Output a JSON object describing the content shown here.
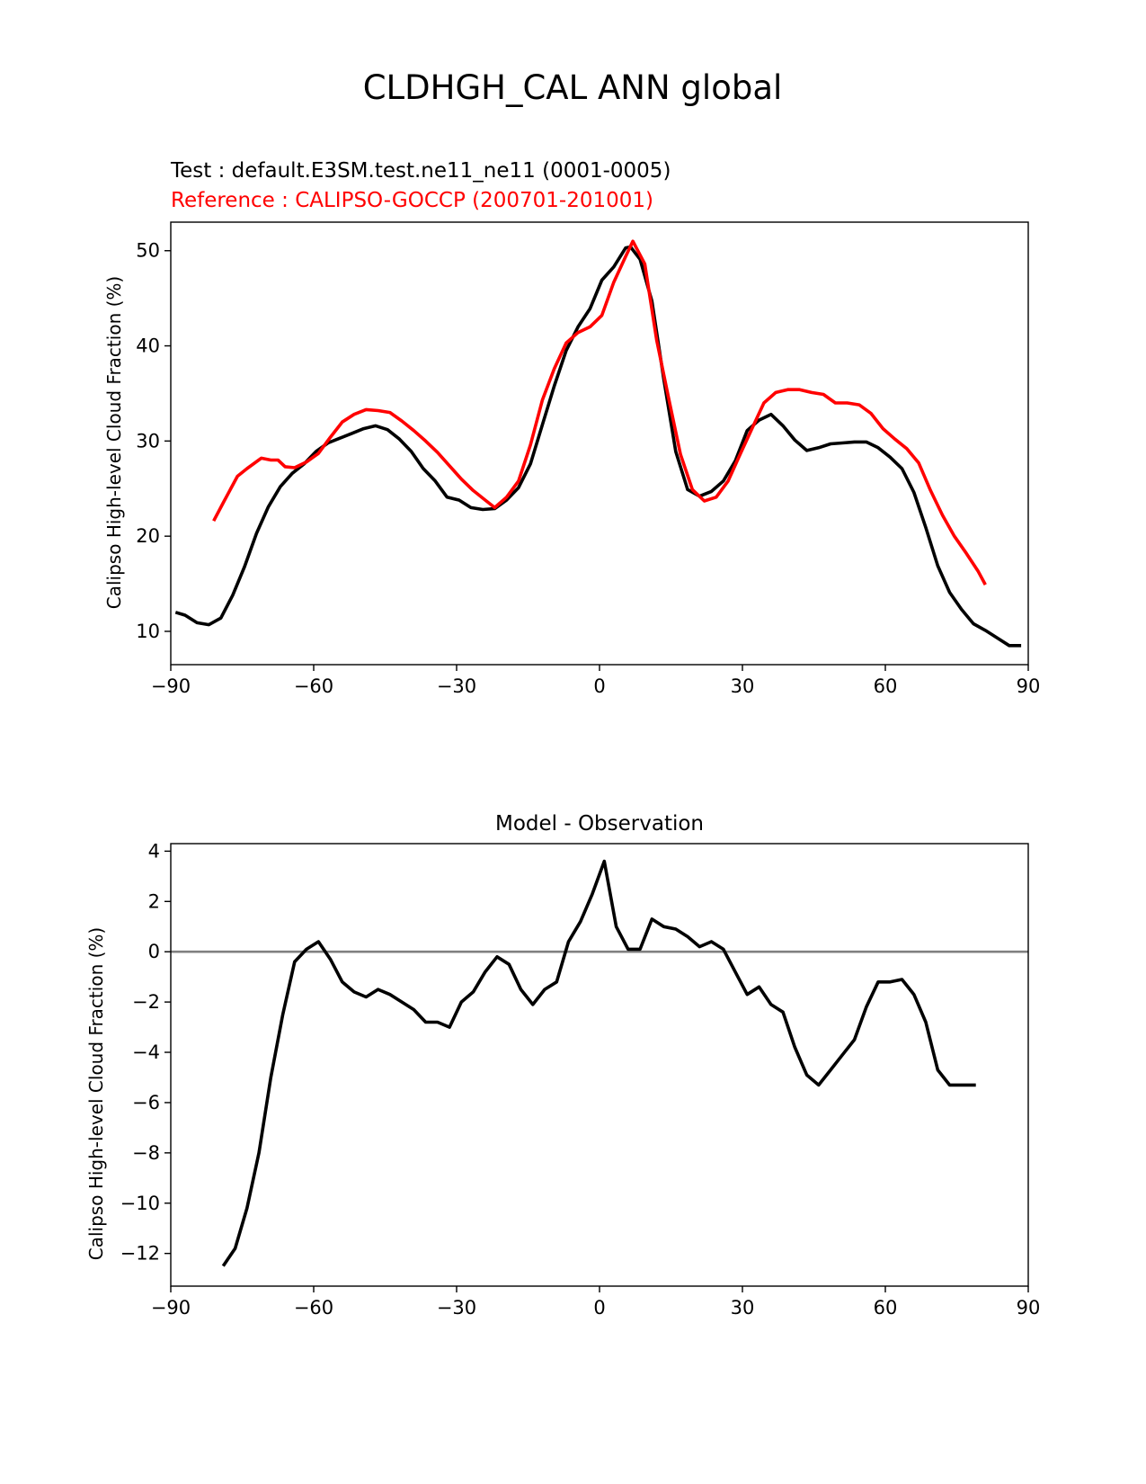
{
  "figure": {
    "suptitle": "CLDHGH_CAL ANN global"
  },
  "chart_data": [
    {
      "type": "line",
      "test_label": "Test : default.E3SM.test.ne11_ne11 (0001-0005)",
      "reference_label": "Reference : CALIPSO-GOCCP (200701-201001)",
      "ylabel": "Calipso High-level Cloud Fraction (%)",
      "xlabel": "",
      "xlim": [
        -90,
        90
      ],
      "ylim": [
        6.5,
        53
      ],
      "xticks": [
        -90,
        -60,
        -30,
        0,
        30,
        60,
        90
      ],
      "xtick_labels": [
        "−90",
        "−60",
        "−30",
        "0",
        "30",
        "60",
        "90"
      ],
      "yticks": [
        10,
        20,
        30,
        40,
        50
      ],
      "ytick_labels": [
        "10",
        "20",
        "30",
        "40",
        "50"
      ],
      "series": [
        {
          "name": "test",
          "color": "#000000",
          "x": [
            -89,
            -87,
            -84.5,
            -82,
            -79.5,
            -77,
            -74.5,
            -72,
            -69.5,
            -67,
            -64.5,
            -62,
            -59.5,
            -57,
            -54.5,
            -52,
            -49.5,
            -47,
            -44.5,
            -42,
            -39.5,
            -37,
            -34.5,
            -32,
            -29.5,
            -27,
            -24.5,
            -22,
            -19.5,
            -17,
            -14.5,
            -12,
            -9.5,
            -7,
            -4.5,
            -2,
            0.5,
            3,
            5.5,
            6.5,
            8.5,
            11,
            13.5,
            16,
            18.5,
            21,
            23.5,
            26,
            28.5,
            31,
            33.5,
            36,
            38.5,
            41,
            43.5,
            46,
            48.5,
            51,
            53.5,
            56,
            58.5,
            61,
            63.5,
            66,
            68.5,
            71,
            73.5,
            76,
            78.5,
            81,
            83.5,
            86,
            88.5
          ],
          "values": [
            12,
            11.7,
            10.9,
            10.7,
            11.4,
            13.8,
            16.8,
            20.3,
            23.1,
            25.2,
            26.6,
            27.6,
            28.9,
            29.8,
            30.3,
            30.8,
            31.3,
            31.6,
            31.2,
            30.2,
            28.9,
            27.1,
            25.8,
            24.1,
            23.8,
            23,
            22.8,
            22.9,
            23.8,
            25.1,
            27.6,
            31.7,
            35.8,
            39.5,
            42,
            43.9,
            46.9,
            48.3,
            50.3,
            50.4,
            49.1,
            44.7,
            36.5,
            28.9,
            24.9,
            24.2,
            24.7,
            25.8,
            27.9,
            31.1,
            32.2,
            32.8,
            31.6,
            30.1,
            29,
            29.3,
            29.7,
            29.8,
            29.9,
            29.9,
            29.3,
            28.3,
            27.1,
            24.6,
            20.9,
            16.9,
            14.1,
            12.3,
            10.8,
            10.1,
            9.3,
            8.5,
            8.5
          ]
        },
        {
          "name": "reference",
          "color": "#ff0000",
          "x": [
            -81,
            -79,
            -76,
            -74,
            -71,
            -69,
            -67.5,
            -66,
            -64,
            -61.5,
            -59,
            -56.5,
            -54,
            -51.5,
            -49,
            -46.5,
            -44,
            -41.5,
            -39,
            -36.5,
            -34,
            -31.5,
            -29,
            -26.5,
            -24,
            -22,
            -19.5,
            -17,
            -14.5,
            -12,
            -9.5,
            -7,
            -4.5,
            -2,
            0.5,
            3,
            5.5,
            7,
            9.5,
            12,
            14.5,
            17,
            19.5,
            22,
            24.5,
            27,
            29.5,
            32,
            34.5,
            37,
            39.5,
            42,
            44.5,
            47,
            49.5,
            52,
            54.5,
            57,
            59.5,
            62,
            64.5,
            67,
            69.5,
            72,
            74.5,
            77,
            79.5,
            81
          ],
          "values": [
            21.6,
            23.5,
            26.3,
            27.1,
            28.2,
            28,
            28,
            27.3,
            27.2,
            27.8,
            28.7,
            30.4,
            32,
            32.8,
            33.3,
            33.2,
            33,
            32.1,
            31.1,
            30,
            28.8,
            27.4,
            26,
            24.8,
            23.8,
            23,
            24.1,
            25.8,
            29.6,
            34.3,
            37.6,
            40.3,
            41.4,
            42,
            43.2,
            46.7,
            49.4,
            51,
            48.6,
            40.6,
            34.5,
            28.6,
            24.9,
            23.7,
            24.1,
            25.8,
            28.6,
            31.3,
            34,
            35.1,
            35.4,
            35.4,
            35.1,
            34.9,
            34,
            34,
            33.8,
            32.9,
            31.3,
            30.2,
            29.2,
            27.7,
            24.8,
            22.2,
            20,
            18.2,
            16.3,
            14.9
          ]
        }
      ]
    },
    {
      "type": "line",
      "title": "Model - Observation",
      "ylabel": "Calipso High-level Cloud Fraction (%)",
      "xlabel": "",
      "xlim": [
        -90,
        90
      ],
      "ylim": [
        -13.3,
        4.3
      ],
      "xticks": [
        -90,
        -60,
        -30,
        0,
        30,
        60,
        90
      ],
      "xtick_labels": [
        "−90",
        "−60",
        "−30",
        "0",
        "30",
        "60",
        "90"
      ],
      "yticks": [
        -12,
        -10,
        -8,
        -6,
        -4,
        -2,
        0,
        2,
        4
      ],
      "ytick_labels": [
        "−12",
        "−10",
        "−8",
        "−6",
        "−4",
        "−2",
        "0",
        "2",
        "4"
      ],
      "zero_line": {
        "y": 0,
        "color": "#808080"
      },
      "series": [
        {
          "name": "difference",
          "color": "#000000",
          "x": [
            -79,
            -76.5,
            -74,
            -71.5,
            -69,
            -66.5,
            -64,
            -61.5,
            -59,
            -56.5,
            -54,
            -51.5,
            -49,
            -46.5,
            -44,
            -41.5,
            -39,
            -36.5,
            -34,
            -31.5,
            -29,
            -26.5,
            -24,
            -21.5,
            -19,
            -16.5,
            -14,
            -11.5,
            -9,
            -6.5,
            -4,
            -1.5,
            1,
            3.5,
            6,
            8.5,
            11,
            13.5,
            16,
            18.5,
            21,
            23.5,
            26,
            28.5,
            31,
            33.5,
            36,
            38.5,
            41,
            43.5,
            46,
            48.5,
            51,
            53.5,
            56,
            58.5,
            61,
            63.5,
            66,
            68.5,
            71,
            73.5,
            76,
            79
          ],
          "values": [
            -12.5,
            -11.8,
            -10.2,
            -8,
            -5,
            -2.5,
            -0.4,
            0.1,
            0.4,
            -0.3,
            -1.2,
            -1.6,
            -1.8,
            -1.5,
            -1.7,
            -2,
            -2.3,
            -2.8,
            -2.8,
            -3,
            -2,
            -1.6,
            -0.8,
            -0.2,
            -0.5,
            -1.5,
            -2.1,
            -1.5,
            -1.2,
            0.4,
            1.2,
            2.3,
            3.6,
            1,
            0.1,
            0.1,
            1.3,
            1,
            0.9,
            0.6,
            0.2,
            0.4,
            0.1,
            -0.8,
            -1.7,
            -1.4,
            -2.1,
            -2.4,
            -3.8,
            -4.9,
            -5.3,
            -4.7,
            -4.1,
            -3.5,
            -2.2,
            -1.2,
            -1.2,
            -1.1,
            -1.7,
            -2.8,
            -4.7,
            -5.3,
            -5.3,
            -5.3
          ]
        }
      ]
    }
  ]
}
